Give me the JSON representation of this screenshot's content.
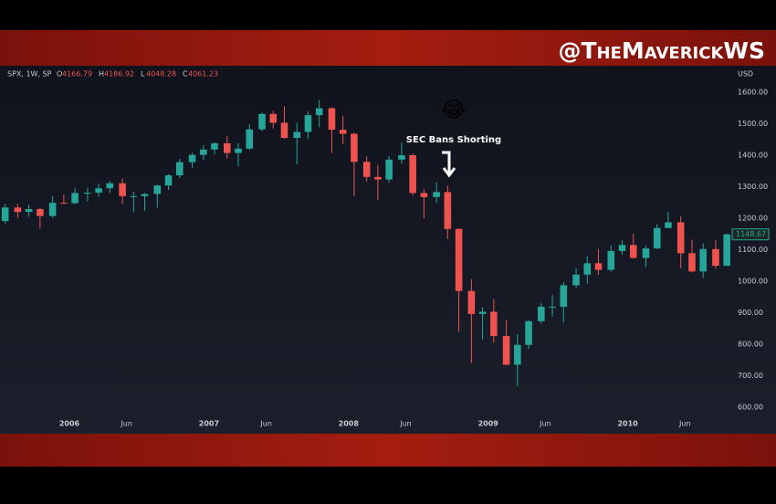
{
  "watermark": "@TheMaverickWS",
  "chart_data": {
    "type": "candlestick",
    "symbol": "SPX, 1W, SP",
    "header_ohlc": [
      {
        "label": "O",
        "value": 4166.79
      },
      {
        "label": "H",
        "value": 4186.92
      },
      {
        "label": "L",
        "value": 4048.28
      },
      {
        "label": "C",
        "value": 4061.23
      }
    ],
    "currency": "USD",
    "annotation": {
      "emoji": "😂",
      "text": "SEC Bans Shorting"
    },
    "x": [
      2005.54,
      2005.63,
      2005.71,
      2005.79,
      2005.88,
      2005.96,
      2006.04,
      2006.13,
      2006.21,
      2006.29,
      2006.38,
      2006.46,
      2006.54,
      2006.63,
      2006.71,
      2006.79,
      2006.88,
      2006.96,
      2007.04,
      2007.13,
      2007.21,
      2007.29,
      2007.38,
      2007.46,
      2007.54,
      2007.63,
      2007.71,
      2007.79,
      2007.88,
      2007.96,
      2008.04,
      2008.13,
      2008.21,
      2008.29,
      2008.38,
      2008.46,
      2008.54,
      2008.63,
      2008.71,
      2008.79,
      2008.88,
      2008.96,
      2009.04,
      2009.13,
      2009.21,
      2009.29,
      2009.38,
      2009.46,
      2009.54,
      2009.63,
      2009.71,
      2009.79,
      2009.88,
      2009.96,
      2010.04,
      2010.13,
      2010.21,
      2010.29,
      2010.38,
      2010.46,
      2010.54,
      2010.63,
      2010.71
    ],
    "open": [
      1191,
      1234,
      1220,
      1229,
      1207,
      1249,
      1248,
      1280,
      1281,
      1295,
      1311,
      1270,
      1270,
      1277,
      1304,
      1336,
      1378,
      1401,
      1418,
      1438,
      1407,
      1421,
      1482,
      1531,
      1503,
      1455,
      1474,
      1527,
      1549,
      1481,
      1468,
      1379,
      1331,
      1323,
      1386,
      1400,
      1280,
      1267,
      1283,
      1166,
      969,
      896,
      903,
      826,
      735,
      798,
      873,
      919,
      919,
      987,
      1021,
      1057,
      1036,
      1096,
      1115,
      1074,
      1104,
      1169,
      1187,
      1089,
      1031,
      1102,
      1049
    ],
    "high": [
      1245,
      1246,
      1243,
      1233,
      1270,
      1275,
      1295,
      1297,
      1310,
      1318,
      1326,
      1284,
      1280,
      1306,
      1340,
      1389,
      1407,
      1432,
      1441,
      1462,
      1438,
      1498,
      1535,
      1541,
      1556,
      1503,
      1539,
      1576,
      1552,
      1524,
      1471,
      1396,
      1370,
      1397,
      1440,
      1405,
      1292,
      1313,
      1304,
      1167,
      1007,
      918,
      944,
      876,
      832,
      877,
      930,
      957,
      997,
      1040,
      1080,
      1102,
      1113,
      1130,
      1151,
      1113,
      1181,
      1220,
      1207,
      1132,
      1120,
      1130,
      1151
    ],
    "low": [
      1183,
      1201,
      1205,
      1168,
      1201,
      1246,
      1245,
      1253,
      1268,
      1280,
      1245,
      1219,
      1224,
      1234,
      1290,
      1327,
      1360,
      1385,
      1403,
      1389,
      1364,
      1416,
      1476,
      1485,
      1452,
      1371,
      1453,
      1489,
      1407,
      1435,
      1270,
      1317,
      1257,
      1312,
      1373,
      1272,
      1200,
      1248,
      1134,
      840,
      741,
      815,
      805,
      733,
      667,
      784,
      866,
      888,
      870,
      979,
      992,
      1020,
      1030,
      1085,
      1071,
      1045,
      1102,
      1168,
      1041,
      1028,
      1011,
      1040,
      1049
    ],
    "close": [
      1234,
      1220,
      1229,
      1207,
      1249,
      1248,
      1280,
      1281,
      1295,
      1311,
      1270,
      1270,
      1277,
      1304,
      1336,
      1378,
      1401,
      1418,
      1438,
      1407,
      1421,
      1482,
      1531,
      1503,
      1455,
      1474,
      1527,
      1549,
      1481,
      1468,
      1379,
      1331,
      1323,
      1386,
      1400,
      1280,
      1267,
      1283,
      1166,
      969,
      896,
      903,
      826,
      735,
      798,
      873,
      919,
      919,
      987,
      1021,
      1057,
      1036,
      1096,
      1115,
      1074,
      1104,
      1169,
      1187,
      1089,
      1031,
      1102,
      1049,
      1148.67
    ],
    "up_color": "#26a69a",
    "down_color": "#ef5350",
    "xlim": [
      2005.503,
      2010.735
    ],
    "xticks": [
      {
        "value": 2006,
        "label": "2006"
      },
      {
        "value": 2006.41,
        "label": "Jun"
      },
      {
        "value": 2007,
        "label": "2007"
      },
      {
        "value": 2007.41,
        "label": "Jun"
      },
      {
        "value": 2008,
        "label": "2008"
      },
      {
        "value": 2008.41,
        "label": "Jun"
      },
      {
        "value": 2009,
        "label": "2009"
      },
      {
        "value": 2009.41,
        "label": "Jun"
      },
      {
        "value": 2010,
        "label": "2010"
      },
      {
        "value": 2010.41,
        "label": "Jun"
      }
    ],
    "ylim": [
      516,
      1684
    ],
    "yticks": [
      {
        "value": 600,
        "label": "600.00"
      },
      {
        "value": 700,
        "label": "700.00"
      },
      {
        "value": 800,
        "label": "800.00"
      },
      {
        "value": 900,
        "label": "900.00"
      },
      {
        "value": 1000,
        "label": "1000.00"
      },
      {
        "value": 1100,
        "label": "1100.00"
      },
      {
        "value": 1200,
        "label": "1200.00"
      },
      {
        "value": 1300,
        "label": "1300.00"
      },
      {
        "value": 1400,
        "label": "1400.00"
      },
      {
        "value": 1500,
        "label": "1500.00"
      },
      {
        "value": 1600,
        "label": "1600.00"
      }
    ]
  }
}
